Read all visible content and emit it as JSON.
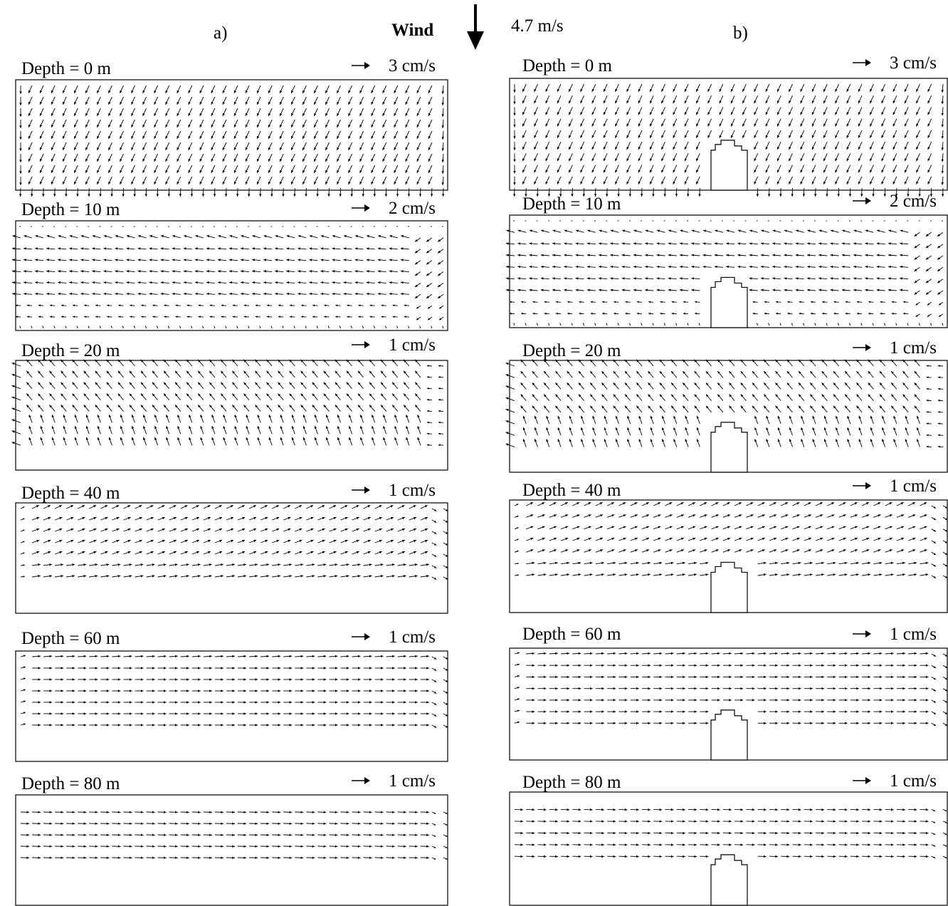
{
  "figure": {
    "left_title": "a)",
    "right_title": "b)",
    "wind": {
      "label": "Wind",
      "speed_label": "4.7 m/s",
      "direction": "south",
      "arrow_icon": "down-arrow-icon"
    },
    "columns": [
      {
        "id": "a",
        "has_obstacle": false,
        "panels": [
          {
            "depth_label": "Depth = 0 m",
            "scale_label": "3 cm/s",
            "pattern": "surface"
          },
          {
            "depth_label": "Depth = 10 m",
            "scale_label": "2 cm/s",
            "pattern": "west"
          },
          {
            "depth_label": "Depth = 20 m",
            "scale_label": "1 cm/s",
            "pattern": "northwest"
          },
          {
            "depth_label": "Depth = 40 m",
            "scale_label": "1 cm/s",
            "pattern": "northeast"
          },
          {
            "depth_label": "Depth = 60 m",
            "scale_label": "1 cm/s",
            "pattern": "east"
          },
          {
            "depth_label": "Depth = 80 m",
            "scale_label": "1 cm/s",
            "pattern": "east-upper"
          }
        ]
      },
      {
        "id": "b",
        "has_obstacle": true,
        "panels": [
          {
            "depth_label": "Depth = 0 m",
            "scale_label": "3 cm/s",
            "pattern": "surface"
          },
          {
            "depth_label": "Depth = 10 m",
            "scale_label": "2 cm/s",
            "pattern": "west"
          },
          {
            "depth_label": "Depth = 20 m",
            "scale_label": "1 cm/s",
            "pattern": "northwest"
          },
          {
            "depth_label": "Depth = 40 m",
            "scale_label": "1 cm/s",
            "pattern": "northeast"
          },
          {
            "depth_label": "Depth = 60 m",
            "scale_label": "1 cm/s",
            "pattern": "east"
          },
          {
            "depth_label": "Depth = 80 m",
            "scale_label": "1 cm/s",
            "pattern": "east-upper"
          }
        ]
      }
    ]
  }
}
